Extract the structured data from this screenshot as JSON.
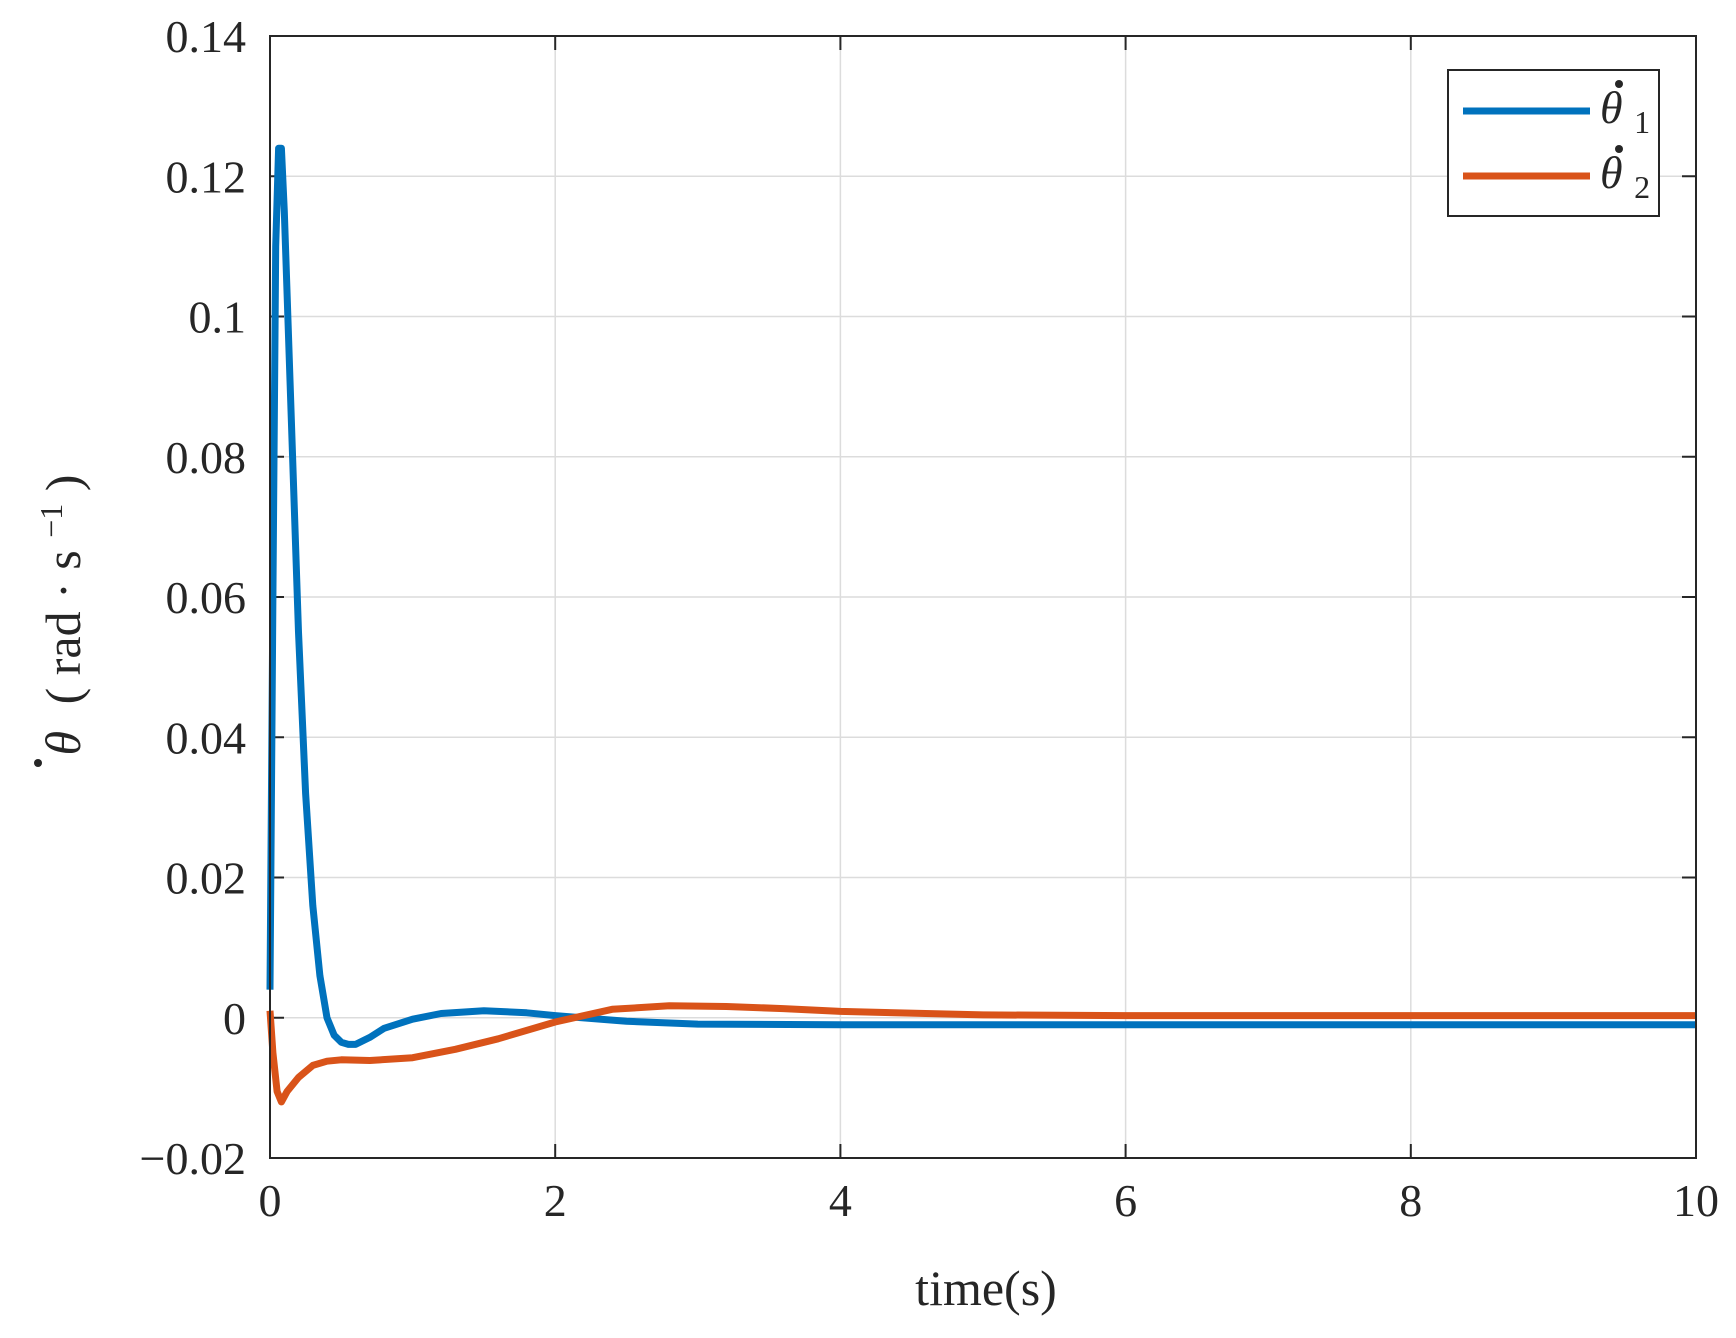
{
  "chart_data": {
    "type": "line",
    "title": "",
    "xlabel": "time(s)",
    "ylabel": {
      "symbol": "θ",
      "unit_open": "(",
      "unit": "rad · s",
      "exponent": "−1",
      "unit_close": ")"
    },
    "xlim": [
      0,
      10
    ],
    "ylim": [
      -0.02,
      0.14
    ],
    "x_ticks": [
      0,
      2,
      4,
      6,
      8,
      10
    ],
    "x_tick_labels": [
      "0",
      "2",
      "4",
      "6",
      "8",
      "10"
    ],
    "y_ticks": [
      -0.02,
      0,
      0.02,
      0.04,
      0.06,
      0.08,
      0.1,
      0.12,
      0.14
    ],
    "y_tick_labels": [
      "−0.02",
      "0",
      "0.02",
      "0.04",
      "0.06",
      "0.08",
      "0.1",
      "0.12",
      "0.14"
    ],
    "grid": true,
    "legend_position": "top-right",
    "series": [
      {
        "name": "θ̇1",
        "legend_symbol": "θ",
        "legend_subscript": "1",
        "color": "#0072BD",
        "x": [
          0,
          0.02,
          0.04,
          0.06,
          0.08,
          0.1,
          0.15,
          0.2,
          0.25,
          0.3,
          0.35,
          0.4,
          0.45,
          0.5,
          0.55,
          0.6,
          0.7,
          0.8,
          1.0,
          1.2,
          1.5,
          1.8,
          2.0,
          2.5,
          3.0,
          4.0,
          5.0,
          6.0,
          8.0,
          10.0
        ],
        "y": [
          0.004,
          0.06,
          0.11,
          0.124,
          0.124,
          0.115,
          0.085,
          0.055,
          0.032,
          0.016,
          0.006,
          0.0,
          -0.0025,
          -0.0035,
          -0.0038,
          -0.0038,
          -0.0028,
          -0.0015,
          -0.0002,
          0.0006,
          0.001,
          0.0007,
          0.0003,
          -0.0005,
          -0.0009,
          -0.001,
          -0.001,
          -0.001,
          -0.001,
          -0.001
        ]
      },
      {
        "name": "θ̇2",
        "legend_symbol": "θ",
        "legend_subscript": "2",
        "color": "#D95319",
        "x": [
          0,
          0.02,
          0.05,
          0.08,
          0.12,
          0.2,
          0.3,
          0.4,
          0.5,
          0.7,
          1.0,
          1.3,
          1.6,
          2.0,
          2.4,
          2.8,
          3.2,
          3.6,
          4.0,
          5.0,
          6.0,
          8.0,
          10.0
        ],
        "y": [
          0.001,
          -0.005,
          -0.0105,
          -0.012,
          -0.0105,
          -0.0085,
          -0.0068,
          -0.0062,
          -0.006,
          -0.0061,
          -0.0057,
          -0.0045,
          -0.003,
          -0.0006,
          0.0012,
          0.0017,
          0.0016,
          0.0013,
          0.0009,
          0.0004,
          0.0003,
          0.0003,
          0.0003
        ]
      }
    ]
  }
}
